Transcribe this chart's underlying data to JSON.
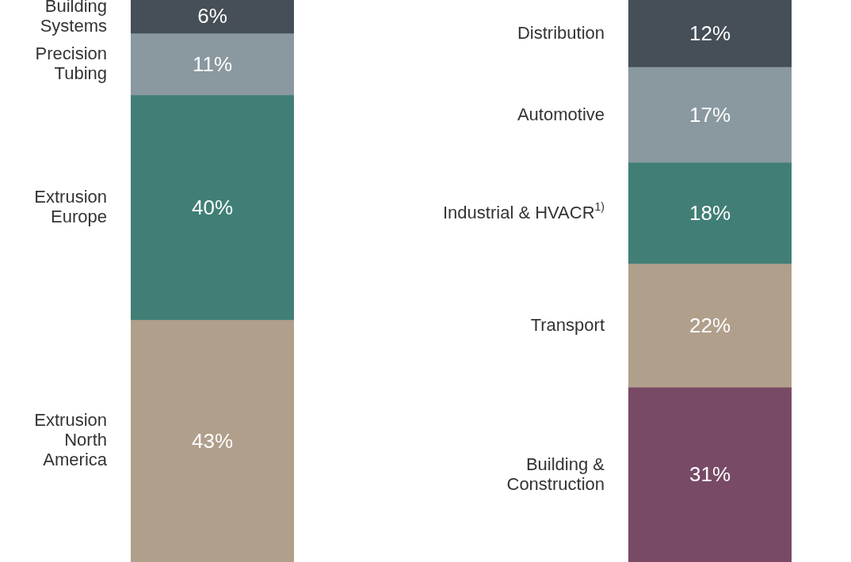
{
  "chart_data": [
    {
      "type": "bar",
      "stacked": true,
      "categories": [
        null
      ],
      "legend": false,
      "tick_labels": false,
      "series": [
        {
          "name": "Extrusion\nNorth\nAmerica",
          "color": "#b09f8b",
          "values": [
            43
          ],
          "value_labels": [
            "43%"
          ]
        },
        {
          "name": "Extrusion\nEurope",
          "color": "#417f76",
          "values": [
            40
          ],
          "value_labels": [
            "40%"
          ]
        },
        {
          "name": "Precision\nTubing",
          "color": "#8a99a0",
          "values": [
            11
          ],
          "value_labels": [
            "11%"
          ]
        },
        {
          "name": "Building\nSystems",
          "color": "#464e57",
          "values": [
            6
          ],
          "value_labels": [
            "6%"
          ]
        }
      ]
    },
    {
      "type": "bar",
      "stacked": true,
      "categories": [
        null
      ],
      "legend": false,
      "tick_labels": false,
      "series": [
        {
          "name": "Building &\nConstruction",
          "color": "#784a66",
          "values": [
            31
          ],
          "value_labels": [
            "31%"
          ]
        },
        {
          "name": "Transport",
          "color": "#b09f8b",
          "values": [
            22
          ],
          "value_labels": [
            "22%"
          ]
        },
        {
          "name": "Industrial & HVACR$^{1)}$",
          "color": "#417f76",
          "values": [
            18
          ],
          "value_labels": [
            "18%"
          ]
        },
        {
          "name": "Automotive",
          "color": "#8a99a0",
          "values": [
            17
          ],
          "value_labels": [
            "17%"
          ]
        },
        {
          "name": "Distribution",
          "color": "#464e57",
          "values": [
            12
          ],
          "value_labels": [
            "12%"
          ]
        }
      ]
    }
  ]
}
